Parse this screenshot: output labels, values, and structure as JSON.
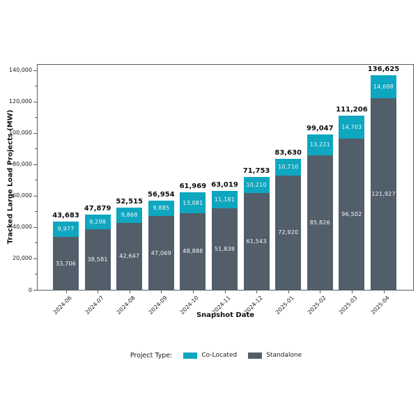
{
  "chart_data": {
    "type": "bar",
    "stacked": true,
    "title": "",
    "xlabel": "Snapshot Date",
    "ylabel": "Tracked Large Load Projects (MW)",
    "categories": [
      "2024-06",
      "2024-07",
      "2024-08",
      "2024-09",
      "2024-10",
      "2024-11",
      "2024-12",
      "2025-01",
      "2025-02",
      "2025-03",
      "2025-04"
    ],
    "series": [
      {
        "name": "Standalone",
        "color": "#525f6a",
        "values": [
          33706,
          38581,
          42647,
          47069,
          48888,
          51838,
          61543,
          72920,
          85826,
          96502,
          121927
        ]
      },
      {
        "name": "Co-Located",
        "color": "#0fa6c0",
        "values": [
          9977,
          9298,
          9868,
          9885,
          13081,
          11181,
          10210,
          10710,
          13221,
          14703,
          14698
        ]
      }
    ],
    "totals": [
      43683,
      47879,
      52515,
      56954,
      61969,
      63019,
      71753,
      83630,
      99047,
      111206,
      136625
    ],
    "ylim": [
      0,
      143456
    ],
    "ytick_step": 20000,
    "ytick_max": 140000,
    "grid": false,
    "legend_position": "bottom"
  },
  "legend": {
    "title": "Project Type:",
    "items": [
      {
        "label": "Co-Located",
        "color": "#0fa6c0"
      },
      {
        "label": "Standalone",
        "color": "#525f6a"
      }
    ]
  }
}
